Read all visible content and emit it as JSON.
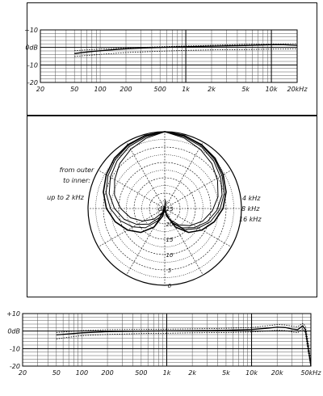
{
  "chart_data": [
    {
      "type": "line",
      "x_scale": "log",
      "xlim": [
        20,
        20000
      ],
      "ylim": [
        -20,
        10
      ],
      "x_ticks": [
        20,
        50,
        100,
        200,
        500,
        1000,
        2000,
        5000,
        10000,
        20000
      ],
      "x_tick_labels": [
        "20",
        "50",
        "100",
        "200",
        "500",
        "1k",
        "2k",
        "5k",
        "10k",
        "20kHz"
      ],
      "y_ticks": [
        10,
        0,
        -10,
        -20
      ],
      "y_tick_labels": [
        "+10",
        "0dB",
        "-10",
        "-20"
      ],
      "grid": true,
      "series": [
        {
          "style": "solid",
          "x": [
            50,
            60,
            80,
            100,
            150,
            200,
            300,
            500,
            1000,
            2000,
            3000,
            5000,
            7000,
            10000,
            14000,
            20000
          ],
          "y": [
            -3.5,
            -3.0,
            -2.3,
            -1.9,
            -1.2,
            -0.8,
            -0.4,
            0,
            0.4,
            0.7,
            0.9,
            1.1,
            1.3,
            1.5,
            1.5,
            1.2
          ]
        },
        {
          "style": "dotted",
          "x": [
            50,
            70,
            100,
            200,
            500,
            1000,
            2000,
            5000,
            10000,
            20000
          ],
          "y": [
            -1.8,
            -1.4,
            -1.0,
            -0.3,
            0.4,
            0.8,
            1.2,
            1.8,
            2.0,
            2.1
          ]
        },
        {
          "style": "dotted",
          "x": [
            50,
            70,
            100,
            200,
            500,
            1000,
            2000,
            5000,
            10000,
            20000
          ],
          "y": [
            -5.2,
            -4.6,
            -4.0,
            -2.9,
            -2.2,
            -1.7,
            -1.4,
            -1.2,
            -1.0,
            -0.9
          ]
        }
      ]
    },
    {
      "type": "polar",
      "r_tick_labels": [
        "0",
        "5",
        "10",
        "15",
        "20",
        "25"
      ],
      "r_unit": "dB",
      "annotations": [
        "from outer",
        "to inner:",
        "up to 2 kHz",
        "4 kHz",
        "8 kHz",
        "16 kHz"
      ],
      "series": [
        {
          "name": "up to 2 kHz",
          "angles_deg": [
            0,
            15,
            30,
            45,
            60,
            75,
            90,
            105,
            120,
            135,
            150,
            165,
            180
          ],
          "attenuation_db": [
            0,
            0.4,
            1.0,
            1.8,
            3.0,
            4.3,
            6.0,
            8.3,
            11.0,
            14.0,
            18.0,
            22.5,
            25
          ]
        },
        {
          "name": "4 kHz",
          "angles_deg": [
            0,
            15,
            30,
            45,
            60,
            75,
            90,
            105,
            120,
            135,
            150,
            165,
            180
          ],
          "attenuation_db": [
            0,
            0.5,
            1.2,
            2.2,
            3.5,
            5.0,
            7.0,
            9.5,
            12.5,
            15.5,
            19.5,
            23,
            25
          ]
        },
        {
          "name": "8 kHz",
          "angles_deg": [
            0,
            15,
            30,
            45,
            60,
            75,
            90,
            105,
            120,
            135,
            150,
            165,
            180
          ],
          "attenuation_db": [
            0,
            0.8,
            1.6,
            2.8,
            4.2,
            5.8,
            8.0,
            10.5,
            13.5,
            16.5,
            20,
            23.5,
            25
          ]
        },
        {
          "name": "16 kHz",
          "angles_deg": [
            0,
            15,
            30,
            45,
            60,
            75,
            90,
            105,
            120,
            135,
            150,
            165,
            180
          ],
          "attenuation_db": [
            0,
            1.2,
            2.5,
            3.8,
            5.5,
            7.2,
            9.5,
            12,
            15,
            18,
            21,
            24,
            25
          ]
        }
      ]
    },
    {
      "type": "line",
      "x_scale": "log",
      "xlim": [
        20,
        50000
      ],
      "ylim": [
        -20,
        10
      ],
      "x_ticks": [
        20,
        50,
        100,
        200,
        500,
        1000,
        2000,
        5000,
        10000,
        20000,
        50000
      ],
      "x_tick_labels": [
        "20",
        "50",
        "100",
        "200",
        "500",
        "1k",
        "2k",
        "5k",
        "10k",
        "20k",
        "50kHz"
      ],
      "y_ticks": [
        10,
        0,
        -10,
        -20
      ],
      "y_tick_labels": [
        "+10",
        "0dB",
        "-10",
        "-20"
      ],
      "grid": true,
      "series": [
        {
          "style": "solid",
          "x": [
            50,
            70,
            100,
            150,
            200,
            500,
            1000,
            2000,
            5000,
            10000,
            15000,
            20000,
            25000,
            30000,
            35000,
            40000,
            43000,
            46000,
            50000
          ],
          "y": [
            -2.2,
            -1.6,
            -1.0,
            -0.6,
            -0.3,
            0,
            0.1,
            0.2,
            0.5,
            0.9,
            1.6,
            2.2,
            2.0,
            1.2,
            0.8,
            3.0,
            1.0,
            -8,
            -20
          ]
        },
        {
          "style": "dotted",
          "x": [
            50,
            70,
            100,
            200,
            500,
            1000,
            2000,
            5000,
            10000,
            15000,
            20000,
            25000,
            30000,
            35000,
            40000,
            43000,
            46000,
            50000
          ],
          "y": [
            -0.8,
            -0.3,
            0.3,
            0.8,
            1.0,
            1.1,
            1.3,
            1.6,
            2.0,
            3.0,
            3.7,
            3.5,
            2.8,
            2.5,
            4.4,
            3.0,
            -5,
            -17
          ]
        },
        {
          "style": "dotted",
          "x": [
            50,
            70,
            100,
            200,
            500,
            1000,
            2000,
            5000,
            10000,
            15000,
            20000,
            25000,
            30000,
            35000,
            40000,
            43000,
            46000,
            50000
          ],
          "y": [
            -4.5,
            -3.5,
            -2.6,
            -1.9,
            -1.4,
            -1.2,
            -1.0,
            -0.8,
            -0.5,
            0.0,
            0.5,
            0.3,
            -0.5,
            -1.0,
            1.5,
            -1,
            -11,
            -20
          ]
        }
      ]
    }
  ]
}
